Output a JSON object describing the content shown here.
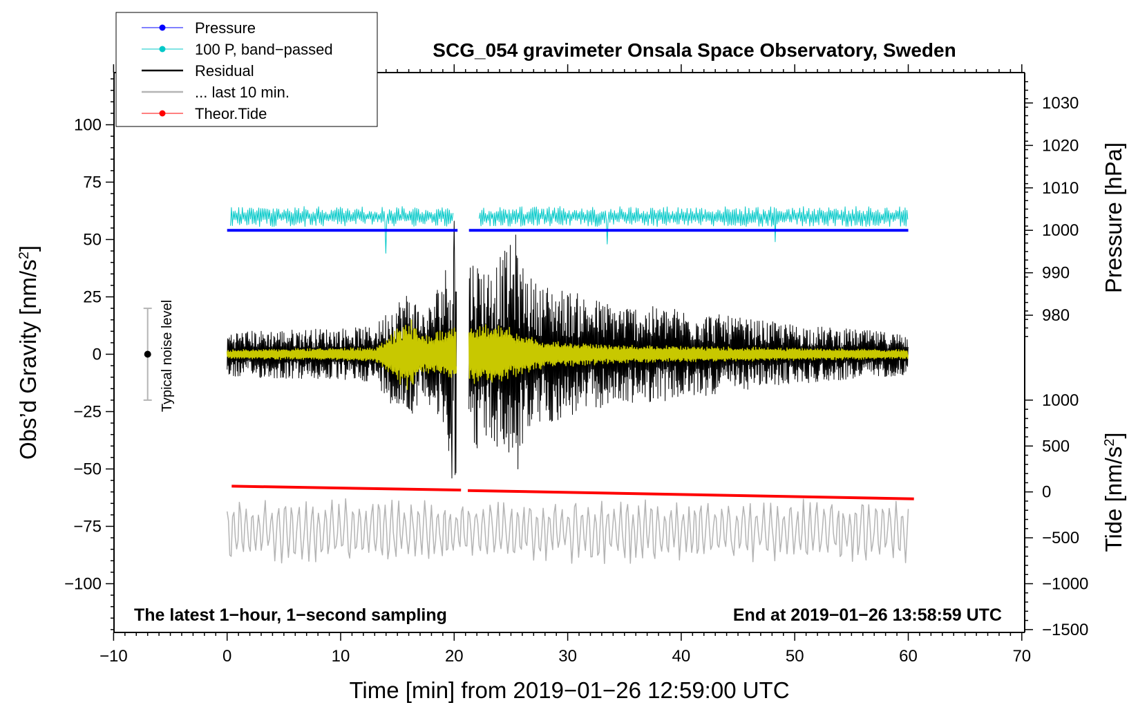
{
  "chart_data": {
    "type": "line",
    "title": "SCG_054 gravimeter Onsala Space Observatory, Sweden",
    "xlabel": "Time [min] from 2019−01−26 12:59:00 UTC",
    "ylabel_left": "Obs’d Gravity [nm/s",
    "ylabel_left_sup": "2",
    "ylabel_left_end": "]",
    "ylabel_right_pressure": "Pressure [hPa]",
    "ylabel_right_tide": "Tide [nm/s",
    "ylabel_right_tide_sup": "2",
    "ylabel_right_tide_end": "]",
    "xlim": [
      -10,
      70
    ],
    "ylim": [
      -120,
      122
    ],
    "x_ticks": [
      "−10",
      "0",
      "10",
      "20",
      "30",
      "40",
      "50",
      "60",
      "70"
    ],
    "x_tick_values": [
      -10,
      0,
      10,
      20,
      30,
      40,
      50,
      60,
      70
    ],
    "y_ticks": [
      "100",
      "75",
      "50",
      "25",
      "0",
      "−25",
      "−50",
      "−75",
      "−100"
    ],
    "y_tick_values": [
      100,
      75,
      50,
      25,
      0,
      -25,
      -50,
      -75,
      -100
    ],
    "pressure_ticks": [
      "1030",
      "1020",
      "1010",
      "1000",
      "990",
      "980"
    ],
    "pressure_tick_values": [
      1030,
      1020,
      1010,
      1000,
      990,
      980
    ],
    "pressure_map": {
      "ref_hpa": 1000,
      "ref_gravity": 54,
      "gravity_per_hpa": 1.85
    },
    "tide_ticks": [
      "1000",
      "500",
      "0",
      "−500",
      "−1000",
      "−1500"
    ],
    "tide_tick_values": [
      1000,
      500,
      0,
      -500,
      -1000,
      -1500
    ],
    "tide_map": {
      "ref_nms2": 0,
      "ref_gravity": -60,
      "gravity_per_nms2": 0.04
    },
    "legend": [
      {
        "label": "Pressure",
        "color": "#0000ff",
        "marker": true
      },
      {
        "label": "100 P, band−passed",
        "color": "#00c8c8",
        "marker": true
      },
      {
        "label": "Residual",
        "color": "#000000",
        "marker": false
      },
      {
        "label": "... last 10 min.",
        "color": "#b4b4b4",
        "marker": false
      },
      {
        "label": "Theor.Tide",
        "color": "#ff0000",
        "marker": true
      }
    ],
    "noise_bar": {
      "label": "Typical noise level",
      "x": -7,
      "center": 0,
      "low": -20,
      "high": 20
    },
    "gap": {
      "start": 20.5,
      "end": 21.3
    },
    "series": [
      {
        "name": "Pressure",
        "color": "#0000ff",
        "unit": "hPa",
        "x": [
          0,
          20.3,
          21.3,
          60
        ],
        "values": [
          54,
          54,
          54,
          54
        ],
        "note": "plotted in gravity units via right pressure axis"
      },
      {
        "name": "100 P, band-passed",
        "color": "#00c8c8",
        "center": 60,
        "amplitude": 4,
        "x_range": [
          0.3,
          60
        ],
        "spikes": [
          {
            "x": 14,
            "v": 44
          },
          {
            "x": 33.5,
            "v": 48
          },
          {
            "x": 48.3,
            "v": 49
          }
        ]
      },
      {
        "name": "Residual",
        "color": "#000000",
        "x_range": [
          0,
          60
        ],
        "envelope": [
          [
            0,
            10
          ],
          [
            13,
            12
          ],
          [
            14.5,
            22
          ],
          [
            16,
            28
          ],
          [
            17.5,
            18
          ],
          [
            19.5,
            42
          ],
          [
            20,
            55
          ],
          [
            21.3,
            44
          ],
          [
            23,
            38
          ],
          [
            25,
            48
          ],
          [
            27,
            32
          ],
          [
            30,
            28
          ],
          [
            34,
            22
          ],
          [
            40,
            20
          ],
          [
            45,
            16
          ],
          [
            50,
            13
          ],
          [
            60,
            9
          ]
        ],
        "extremes": [
          {
            "x": 19.8,
            "v": -54
          },
          {
            "x": 20.0,
            "v": 58
          },
          {
            "x": 25.4,
            "v": 52
          },
          {
            "x": 25.6,
            "v": -50
          }
        ]
      },
      {
        "name": "Residual (filtered)",
        "color": "#c8c800",
        "x_range": [
          0,
          60
        ],
        "envelope": [
          [
            0,
            2
          ],
          [
            13,
            3
          ],
          [
            15,
            12
          ],
          [
            16,
            17
          ],
          [
            17.5,
            8
          ],
          [
            19.5,
            12
          ],
          [
            21.3,
            14
          ],
          [
            24,
            14
          ],
          [
            28,
            6
          ],
          [
            35,
            4
          ],
          [
            60,
            2
          ]
        ]
      },
      {
        "name": "... last 10 min.",
        "color": "#b4b4b4",
        "x_range": [
          0,
          60
        ],
        "center": -77,
        "amplitude": 12
      },
      {
        "name": "Theor.Tide",
        "color": "#ff0000",
        "unit": "nm/s2",
        "x": [
          0.4,
          20.6,
          21.2,
          60.5
        ],
        "values": [
          -57.5,
          -59.2,
          -59.4,
          -63
        ]
      }
    ]
  },
  "annotations": {
    "left_note": "The latest 1−hour, 1−second sampling",
    "right_note": "End at 2019−01−26 13:58:59 UTC"
  }
}
